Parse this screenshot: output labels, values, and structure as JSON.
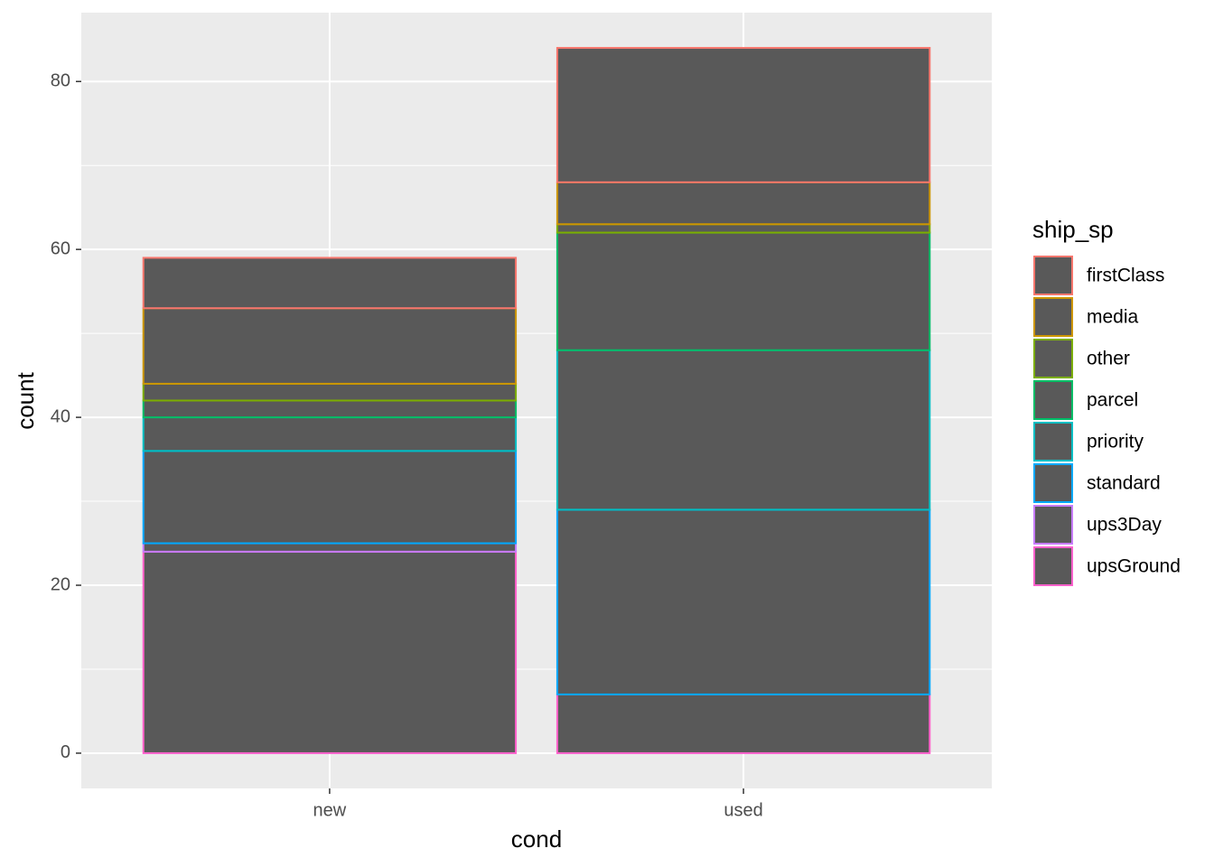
{
  "chart_data": {
    "type": "stacked-bar",
    "x_label": "cond",
    "y_label": "count",
    "legend_title": "ship_sp",
    "categories": [
      "new",
      "used"
    ],
    "bar_fill": "#595959",
    "series": [
      {
        "name": "firstClass",
        "color": "#F8766D",
        "values": [
          6,
          16
        ]
      },
      {
        "name": "media",
        "color": "#CD9600",
        "values": [
          9,
          5
        ]
      },
      {
        "name": "other",
        "color": "#7CAE00",
        "values": [
          2,
          1
        ]
      },
      {
        "name": "parcel",
        "color": "#00BE67",
        "values": [
          2,
          14
        ]
      },
      {
        "name": "priority",
        "color": "#00BFC4",
        "values": [
          4,
          19
        ]
      },
      {
        "name": "standard",
        "color": "#00A9FF",
        "values": [
          11,
          22
        ]
      },
      {
        "name": "ups3Day",
        "color": "#C77CFF",
        "values": [
          1,
          0
        ]
      },
      {
        "name": "upsGround",
        "color": "#FF61CC",
        "values": [
          24,
          7
        ]
      }
    ],
    "ylim": [
      -4.2,
      88.2
    ],
    "yticks": [
      0,
      20,
      40,
      60,
      80
    ],
    "grid": true
  }
}
